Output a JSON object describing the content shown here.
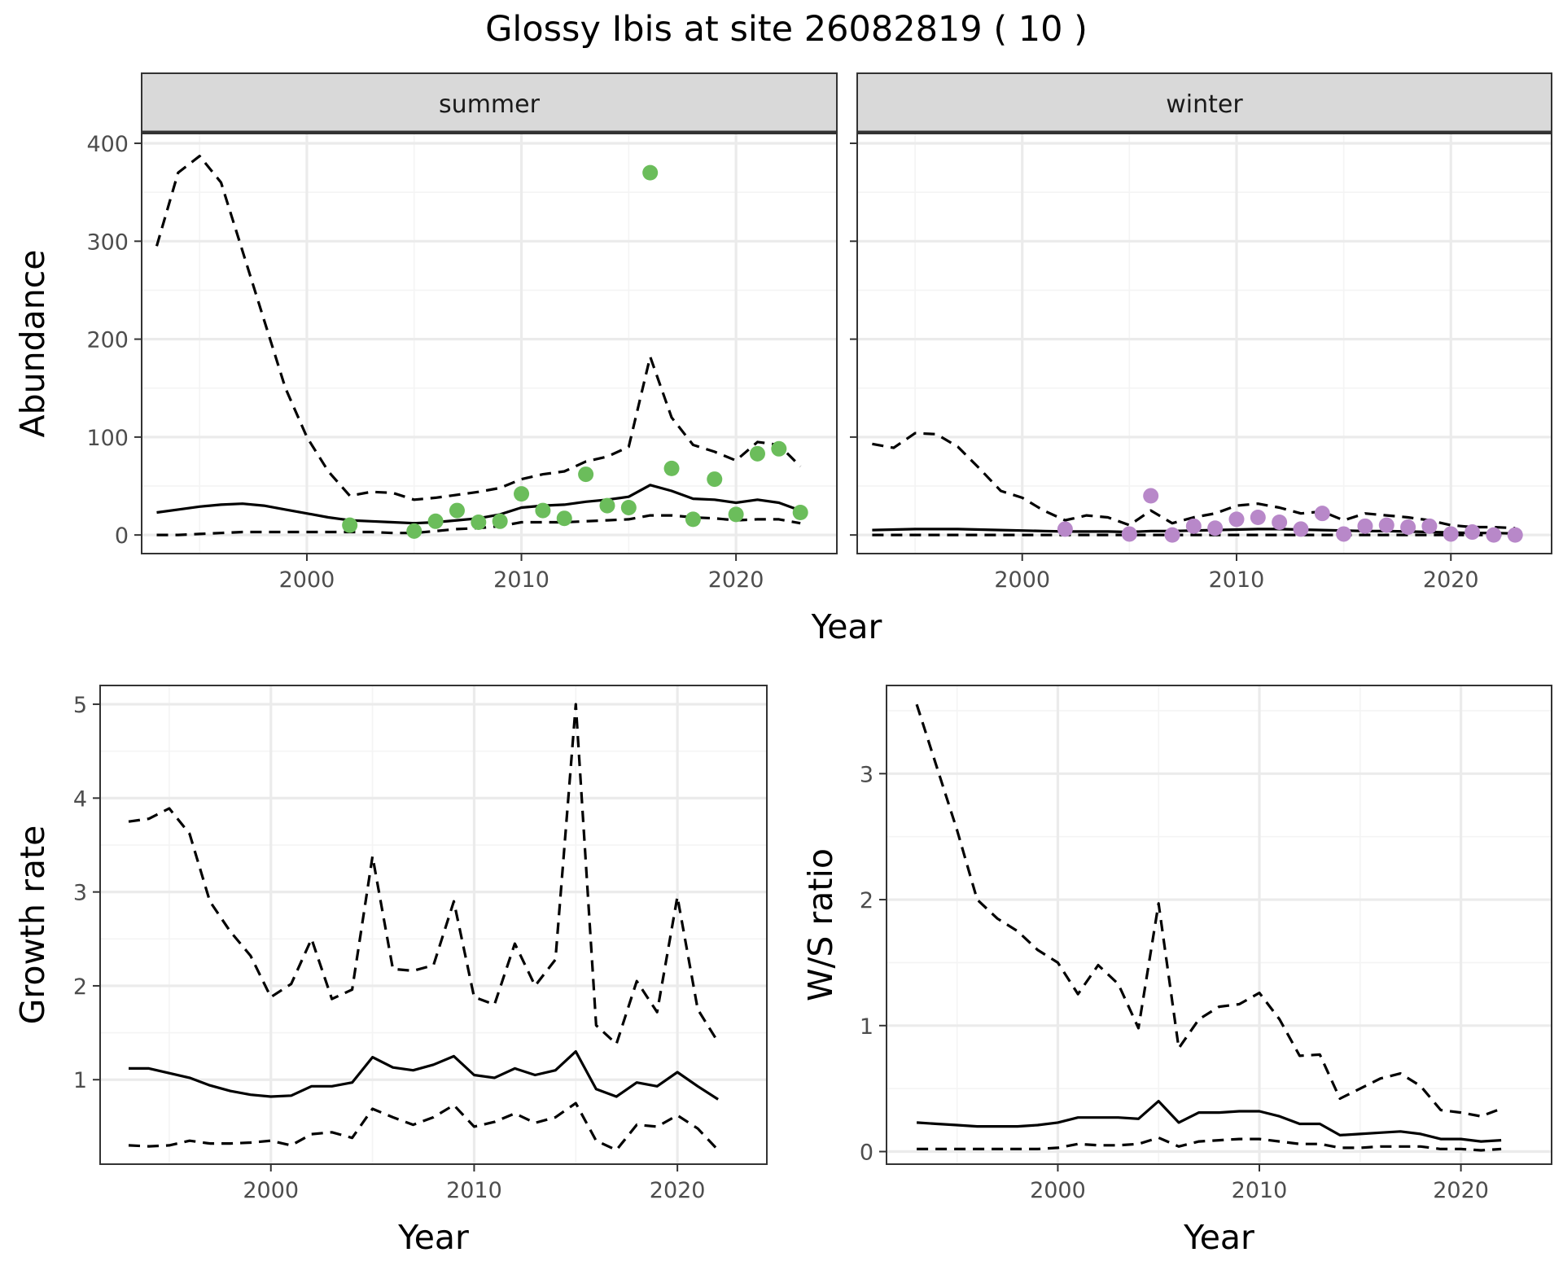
{
  "title": "Glossy Ibis at site 26082819 ( 10 )",
  "colors": {
    "summer_points": "#6bbd5b",
    "winter_points": "#b888c9",
    "strip_bg": "#d9d9d9"
  },
  "chart_data": [
    {
      "id": "summer",
      "type": "line",
      "strip": "summer",
      "xlabel": "Year",
      "ylabel": "Abundance",
      "xlim": [
        1992.3,
        2024.7
      ],
      "ylim": [
        -19,
        410
      ],
      "xticks": [
        2000,
        2010,
        2020
      ],
      "xminor": [
        1995,
        2005,
        2015
      ],
      "yticks": [
        0,
        100,
        200,
        300,
        400
      ],
      "yminor": [
        50,
        150,
        250,
        350
      ],
      "show_y_labels": true,
      "x": [
        1993,
        1994,
        1995,
        1996,
        1997,
        1998,
        1999,
        2000,
        2001,
        2002,
        2003,
        2004,
        2005,
        2006,
        2007,
        2008,
        2009,
        2010,
        2011,
        2012,
        2013,
        2014,
        2015,
        2016,
        2017,
        2018,
        2019,
        2020,
        2021,
        2022,
        2023
      ],
      "series": [
        {
          "style": "mean",
          "values": [
            23,
            26,
            29,
            31,
            32,
            30,
            26,
            22,
            18,
            15,
            14,
            13,
            12,
            13,
            15,
            17,
            21,
            28,
            30,
            31,
            34,
            36,
            39,
            51,
            45,
            37,
            36,
            33,
            36,
            33,
            25
          ]
        },
        {
          "style": "upper",
          "values": [
            295,
            370,
            387,
            360,
            290,
            220,
            150,
            100,
            65,
            40,
            44,
            43,
            36,
            38,
            41,
            44,
            48,
            57,
            62,
            65,
            75,
            80,
            90,
            182,
            120,
            92,
            85,
            76,
            95,
            92,
            70
          ]
        },
        {
          "style": "lower",
          "values": [
            0,
            0,
            1,
            2,
            3,
            3,
            3,
            3,
            3,
            3,
            3,
            2,
            2,
            4,
            6,
            7,
            9,
            13,
            13,
            13,
            14,
            15,
            16,
            20,
            20,
            18,
            17,
            15,
            16,
            16,
            12
          ]
        }
      ],
      "points": {
        "x": [
          2002,
          2005,
          2006,
          2007,
          2008,
          2009,
          2010,
          2011,
          2012,
          2013,
          2014,
          2015,
          2016,
          2017,
          2018,
          2019,
          2020,
          2021,
          2022,
          2023
        ],
        "y": [
          10,
          4,
          14,
          25,
          13,
          14,
          42,
          25,
          17,
          62,
          30,
          28,
          370,
          68,
          16,
          57,
          21,
          83,
          88,
          23
        ]
      }
    },
    {
      "id": "winter",
      "type": "line",
      "strip": "winter",
      "xlabel": "Year",
      "ylabel": "",
      "xlim": [
        1992.3,
        2024.7
      ],
      "ylim": [
        -19,
        410
      ],
      "xticks": [
        2000,
        2010,
        2020
      ],
      "xminor": [
        1995,
        2005,
        2015
      ],
      "yticks": [
        0,
        100,
        200,
        300,
        400
      ],
      "yminor": [
        50,
        150,
        250,
        350
      ],
      "show_y_labels": false,
      "x": [
        1993,
        1994,
        1995,
        1996,
        1997,
        1998,
        1999,
        2000,
        2001,
        2002,
        2003,
        2004,
        2005,
        2006,
        2007,
        2008,
        2009,
        2010,
        2011,
        2012,
        2013,
        2014,
        2015,
        2016,
        2017,
        2018,
        2019,
        2020,
        2021,
        2022,
        2023
      ],
      "series": [
        {
          "style": "mean",
          "values": [
            5,
            5.5,
            6,
            6,
            6,
            5.5,
            5,
            4.5,
            4,
            3.5,
            3.5,
            3.5,
            3,
            4,
            4,
            4.5,
            5,
            5.5,
            6,
            6,
            5.5,
            5,
            4.5,
            4,
            4,
            3.5,
            3,
            2.5,
            2,
            2,
            1.5
          ]
        },
        {
          "style": "upper",
          "values": [
            93,
            89,
            104,
            103,
            90,
            68,
            45,
            38,
            25,
            15,
            20,
            18,
            10,
            25,
            12,
            18,
            22,
            30,
            32,
            28,
            22,
            24,
            15,
            22,
            20,
            18,
            15,
            10,
            8,
            8,
            7
          ]
        },
        {
          "style": "lower",
          "values": [
            0,
            0,
            0,
            0,
            0,
            0,
            0,
            0,
            0,
            0,
            0,
            0,
            0,
            0,
            0,
            0,
            0,
            0,
            0,
            0,
            0,
            0,
            0,
            0,
            0,
            0,
            0,
            0,
            0,
            0,
            0
          ]
        }
      ],
      "points": {
        "x": [
          2002,
          2005,
          2006,
          2007,
          2008,
          2009,
          2010,
          2011,
          2012,
          2013,
          2014,
          2015,
          2016,
          2017,
          2018,
          2019,
          2020,
          2021,
          2022,
          2023
        ],
        "y": [
          6,
          1,
          40,
          0,
          9,
          7,
          16,
          18,
          13,
          6,
          22,
          1,
          9,
          10,
          8,
          9,
          1,
          3,
          0,
          0
        ]
      }
    },
    {
      "id": "growth",
      "type": "line",
      "strip": "",
      "xlabel": "Year",
      "ylabel": "Growth rate",
      "xlim": [
        1991.6,
        2024.4
      ],
      "ylim": [
        0.1,
        5.2
      ],
      "xticks": [
        2000,
        2010,
        2020
      ],
      "xminor": [
        1995,
        2005,
        2015
      ],
      "yticks": [
        1,
        2,
        3,
        4,
        5
      ],
      "yminor": [
        1.5,
        2.5,
        3.5,
        4.5
      ],
      "show_y_labels": true,
      "x": [
        1993,
        1994,
        1995,
        1996,
        1997,
        1998,
        1999,
        2000,
        2001,
        2002,
        2003,
        2004,
        2005,
        2006,
        2007,
        2008,
        2009,
        2010,
        2011,
        2012,
        2013,
        2014,
        2015,
        2016,
        2017,
        2018,
        2019,
        2020,
        2021,
        2022
      ],
      "series": [
        {
          "style": "mean",
          "values": [
            1.12,
            1.12,
            1.07,
            1.02,
            0.94,
            0.88,
            0.84,
            0.82,
            0.83,
            0.93,
            0.93,
            0.97,
            1.24,
            1.13,
            1.1,
            1.16,
            1.25,
            1.05,
            1.02,
            1.12,
            1.05,
            1.1,
            1.3,
            0.9,
            0.82,
            0.97,
            0.93,
            1.08,
            0.93,
            0.79
          ]
        },
        {
          "style": "upper",
          "values": [
            3.75,
            3.78,
            3.89,
            3.62,
            2.9,
            2.58,
            2.32,
            1.88,
            2.02,
            2.5,
            1.86,
            1.96,
            3.38,
            2.18,
            2.16,
            2.22,
            2.9,
            1.88,
            1.8,
            2.45,
            2.0,
            2.28,
            5.0,
            1.58,
            1.38,
            2.05,
            1.72,
            2.95,
            1.75,
            1.4
          ]
        },
        {
          "style": "lower",
          "values": [
            0.3,
            0.29,
            0.3,
            0.35,
            0.32,
            0.32,
            0.33,
            0.35,
            0.3,
            0.42,
            0.44,
            0.38,
            0.69,
            0.6,
            0.52,
            0.6,
            0.73,
            0.5,
            0.55,
            0.64,
            0.54,
            0.6,
            0.75,
            0.35,
            0.25,
            0.52,
            0.5,
            0.62,
            0.48,
            0.25
          ]
        }
      ]
    },
    {
      "id": "ratio",
      "type": "line",
      "strip": "",
      "xlabel": "Year",
      "ylabel": "W/S ratio",
      "xlim": [
        1991.5,
        2024.5
      ],
      "ylim": [
        -0.1,
        3.7
      ],
      "xticks": [
        2000,
        2010,
        2020
      ],
      "xminor": [
        1995,
        2005,
        2015
      ],
      "yticks": [
        0,
        1,
        2,
        3
      ],
      "yminor": [
        0.5,
        1.5,
        2.5,
        3.5
      ],
      "show_y_labels": true,
      "x": [
        1993,
        1994,
        1995,
        1996,
        1997,
        1998,
        1999,
        2000,
        2001,
        2002,
        2003,
        2004,
        2005,
        2006,
        2007,
        2008,
        2009,
        2010,
        2011,
        2012,
        2013,
        2014,
        2015,
        2016,
        2017,
        2018,
        2019,
        2020,
        2021,
        2022
      ],
      "series": [
        {
          "style": "mean",
          "values": [
            0.23,
            0.22,
            0.21,
            0.2,
            0.2,
            0.2,
            0.21,
            0.23,
            0.27,
            0.27,
            0.27,
            0.26,
            0.4,
            0.23,
            0.31,
            0.31,
            0.32,
            0.32,
            0.28,
            0.22,
            0.22,
            0.13,
            0.14,
            0.15,
            0.16,
            0.14,
            0.1,
            0.1,
            0.08,
            0.09
          ]
        },
        {
          "style": "upper",
          "values": [
            3.55,
            3.05,
            2.55,
            2.0,
            1.85,
            1.75,
            1.6,
            1.5,
            1.25,
            1.48,
            1.33,
            0.98,
            1.97,
            0.82,
            1.05,
            1.15,
            1.17,
            1.26,
            1.05,
            0.76,
            0.77,
            0.42,
            0.5,
            0.58,
            0.62,
            0.52,
            0.33,
            0.31,
            0.28,
            0.34
          ]
        },
        {
          "style": "lower",
          "values": [
            0.02,
            0.02,
            0.02,
            0.02,
            0.02,
            0.02,
            0.02,
            0.03,
            0.06,
            0.05,
            0.05,
            0.06,
            0.11,
            0.04,
            0.08,
            0.09,
            0.1,
            0.1,
            0.08,
            0.06,
            0.06,
            0.03,
            0.03,
            0.04,
            0.04,
            0.04,
            0.02,
            0.02,
            0.01,
            0.02
          ]
        }
      ]
    }
  ]
}
